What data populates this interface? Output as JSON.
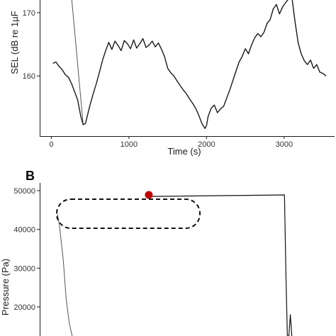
{
  "chart_data": [
    {
      "panel": "",
      "type": "line",
      "xlabel": "Time (s)",
      "ylabel": "SEL (dB re 1µF",
      "xlim": [
        -150,
        3650
      ],
      "ylim": [
        150.5,
        172
      ],
      "x_ticks": [
        0,
        1000,
        2000,
        3000
      ],
      "x_tick_labels": [
        "0",
        "1000",
        "2000",
        "3000"
      ],
      "y_ticks": [
        160,
        170
      ],
      "y_tick_labels": [
        "160",
        "170"
      ],
      "grid": false,
      "colors": {
        "line": "#1a1a1a",
        "thin_line": "#555555"
      },
      "series": [
        {
          "x": [
            20,
            60,
            100,
            140,
            180,
            220,
            260,
            300,
            340,
            380,
            410,
            440,
            470,
            500,
            540,
            580,
            620,
            660,
            700,
            740,
            780,
            820,
            860,
            900,
            940,
            980,
            1020,
            1060,
            1100,
            1140,
            1180,
            1220,
            1260,
            1300,
            1340,
            1380,
            1420,
            1460,
            1500,
            1540,
            1580,
            1620,
            1660,
            1700,
            1740,
            1780,
            1820,
            1860,
            1900,
            1940,
            1980,
            2000,
            2020,
            2060,
            2100,
            2140,
            2180,
            2220,
            2260,
            2300,
            2340,
            2380,
            2420,
            2460,
            2500,
            2540,
            2580,
            2620,
            2660,
            2700,
            2740,
            2780,
            2820,
            2860,
            2900,
            2940,
            2980,
            3020,
            3060,
            3100,
            3140,
            3180,
            3220,
            3260,
            3300,
            3340,
            3380,
            3420,
            3460,
            3500,
            3540
          ],
          "y": [
            162,
            162.2,
            161.5,
            161,
            160.2,
            159.8,
            158.8,
            157.5,
            156.2,
            153.6,
            152.3,
            152.5,
            154,
            155.5,
            157.2,
            158.8,
            160.6,
            162.5,
            164,
            165.3,
            164.2,
            165.5,
            164.8,
            164,
            165.6,
            165.1,
            164.3,
            165.7,
            164.4,
            165.1,
            165.9,
            164.5,
            164.9,
            165.5,
            164.6,
            165.2,
            164.2,
            163,
            161.2,
            160.5,
            160,
            159.2,
            158.5,
            157.8,
            157.2,
            156.4,
            155.7,
            154.9,
            153.8,
            152.5,
            151.7,
            152.2,
            153.6,
            154.9,
            155.4,
            154.2,
            154.8,
            155.2,
            156.5,
            157.8,
            159.3,
            160.8,
            162.2,
            163.1,
            164.3,
            163.5,
            164.9,
            166,
            166.7,
            166.2,
            166.9,
            168.3,
            168.9,
            170.6,
            171.3,
            169.8,
            170.9,
            171.6,
            172.2,
            172.4,
            168.6,
            165.3,
            163.5,
            162.4,
            161.8,
            162.5,
            161.2,
            161.8,
            160.6,
            160.4,
            160
          ]
        }
      ],
      "connectors": [
        {
          "x": [
            260,
            410
          ],
          "y": [
            172.5,
            152.3
          ]
        }
      ]
    },
    {
      "panel": "B",
      "type": "line",
      "xlabel": "",
      "ylabel": "Pressure (Pa)",
      "xlim": [
        0,
        1000
      ],
      "ylim": [
        12500,
        52000
      ],
      "y_ticks": [
        20000,
        30000,
        40000,
        50000
      ],
      "y_tick_labels": [
        "20000",
        "30000",
        "40000",
        "50000"
      ],
      "grid": false,
      "colors": {
        "line": "#111111",
        "thin_line": "#555555",
        "marker": "#c00000",
        "dashed_box": "#111111"
      },
      "series": [
        {
          "x": [
            60,
            67,
            80,
            90,
            100,
            110
          ],
          "y": [
            44000,
            41000,
            32000,
            22000,
            16000,
            12500
          ]
        },
        {
          "x": [
            380,
            830,
            835,
            840,
            845,
            850,
            855
          ],
          "y": [
            48500,
            48900,
            28000,
            12500,
            12500,
            18000,
            12500
          ]
        }
      ],
      "marker_point": {
        "x": 370,
        "y": 48900
      }
    }
  ]
}
